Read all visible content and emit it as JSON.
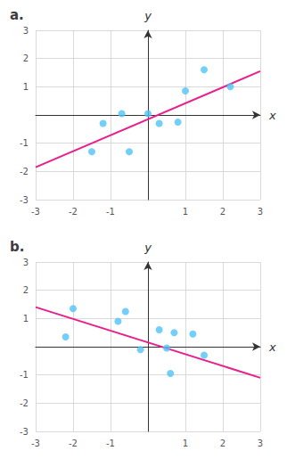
{
  "chart_data": [
    {
      "type": "scatter",
      "title": "a.",
      "xlabel": "x",
      "ylabel": "y",
      "grid": true,
      "xlim": [
        -3,
        3
      ],
      "ylim": [
        -3,
        3
      ],
      "xticks": [
        -3,
        -2,
        -1,
        {
          "value": 0,
          "label": null
        },
        1,
        2,
        3
      ],
      "yticks": [
        -3,
        -2,
        -1,
        {
          "value": 0,
          "label": null
        },
        1,
        2,
        3
      ],
      "series": [
        {
          "type": "scatter",
          "color": "#4FC3F7",
          "x": [
            -1.5,
            -1.2,
            -0.7,
            -0.5,
            0.0,
            0.3,
            0.8,
            1.0,
            1.5,
            2.2
          ],
          "values": [
            -1.3,
            -0.3,
            0.05,
            -1.3,
            0.05,
            -0.3,
            -0.25,
            0.85,
            1.6,
            1.0
          ]
        },
        {
          "type": "line",
          "color": "#E91E8C",
          "x": [
            -3,
            3
          ],
          "values": [
            -1.85,
            1.55
          ]
        }
      ]
    },
    {
      "type": "scatter",
      "title": "b.",
      "xlabel": "x",
      "ylabel": "y",
      "grid": true,
      "xlim": [
        -3,
        3
      ],
      "ylim": [
        -3,
        3
      ],
      "xticks": [
        -3,
        -2,
        -1,
        {
          "value": 0,
          "label": null
        },
        1,
        2,
        3
      ],
      "yticks": [
        -3,
        -2,
        -1,
        {
          "value": 0,
          "label": null
        },
        1,
        2,
        3
      ],
      "series": [
        {
          "type": "scatter",
          "color": "#4FC3F7",
          "x": [
            -2.2,
            -2.0,
            -0.8,
            -0.6,
            -0.2,
            0.3,
            0.5,
            0.6,
            0.7,
            1.2,
            1.5
          ],
          "values": [
            0.35,
            1.35,
            0.9,
            1.25,
            -0.1,
            0.6,
            -0.05,
            -0.95,
            0.5,
            0.45,
            -0.3
          ]
        },
        {
          "type": "line",
          "color": "#E91E8C",
          "x": [
            -3,
            3
          ],
          "values": [
            1.4,
            -1.1
          ]
        }
      ]
    }
  ]
}
